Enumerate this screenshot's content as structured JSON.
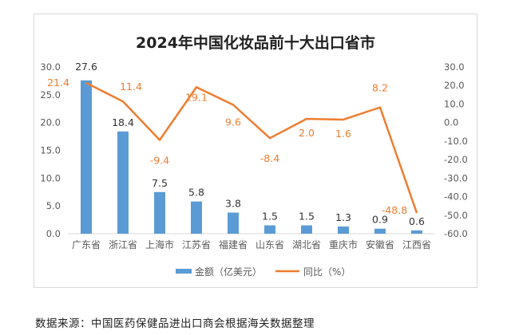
{
  "chart_data": {
    "type": "bar+line",
    "title": "2024年中国化妆品前十大出口省市",
    "categories": [
      "广东省",
      "浙江省",
      "上海市",
      "江苏省",
      "福建省",
      "山东省",
      "湖北省",
      "重庆市",
      "安徽省",
      "江西省"
    ],
    "series": [
      {
        "name": "金额（亿美元）",
        "type": "bar",
        "axis": "left",
        "color": "#5b9bd5",
        "values": [
          27.6,
          18.4,
          7.5,
          5.8,
          3.8,
          1.5,
          1.5,
          1.3,
          0.9,
          0.6
        ],
        "labels": [
          "27.6",
          "18.4",
          "7.5",
          "5.8",
          "3.8",
          "1.5",
          "1.5",
          "1.3",
          "0.9",
          "0.6"
        ]
      },
      {
        "name": "同比（%）",
        "type": "line",
        "axis": "right",
        "color": "#ed7d31",
        "values": [
          21.4,
          11.4,
          -9.4,
          19.1,
          9.6,
          -8.4,
          2.0,
          1.6,
          8.2,
          -48.8
        ],
        "labels": [
          "21.4",
          "11.4",
          "-9.4",
          "19.1",
          "9.6",
          "-8.4",
          "2.0",
          "1.6",
          "8.2",
          "-48.8"
        ]
      }
    ],
    "y_left": {
      "min": 0,
      "max": 30,
      "ticks": [
        "0.0",
        "5.0",
        "10.0",
        "15.0",
        "20.0",
        "25.0",
        "30.0"
      ]
    },
    "y_right": {
      "min": -60,
      "max": 30,
      "ticks": [
        "-60.0",
        "-50.0",
        "-40.0",
        "-30.0",
        "-20.0",
        "-10.0",
        "0.0",
        "10.0",
        "20.0",
        "30.0"
      ]
    },
    "grid": false,
    "legend": "bottom"
  },
  "source_note": "数据来源：中国医药保健品进出口商会根据海关数据整理"
}
